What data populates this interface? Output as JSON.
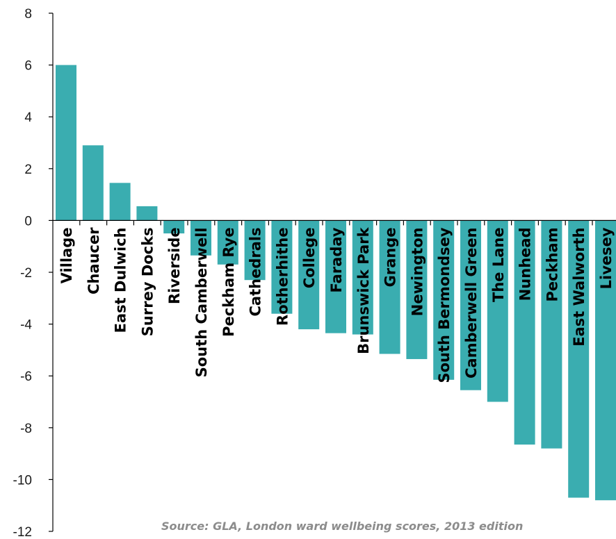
{
  "chart_data": {
    "type": "bar",
    "categories": [
      "Village",
      "Chaucer",
      "East Dulwich",
      "Surrey Docks",
      "Riverside",
      "South Camberwell",
      "Peckham Rye",
      "Cathedrals",
      "Rotherhithe",
      "College",
      "Faraday",
      "Brunswick Park",
      "Grange",
      "Newington",
      "South Bermondsey",
      "Camberwell Green",
      "The Lane",
      "Nunhead",
      "Peckham",
      "East Walworth",
      "Livesey"
    ],
    "values": [
      6.0,
      2.9,
      1.45,
      0.55,
      -0.5,
      -1.35,
      -1.7,
      -2.3,
      -3.6,
      -4.2,
      -4.35,
      -4.4,
      -5.15,
      -5.35,
      -6.15,
      -6.55,
      -7.0,
      -8.65,
      -8.8,
      -10.7,
      -10.8
    ],
    "yticks": [
      8,
      6,
      4,
      2,
      0,
      -2,
      -4,
      -6,
      -8,
      -10,
      -12
    ],
    "ylim": [
      -12,
      8
    ],
    "bar_color": "#3aadb0",
    "annotation": "Source: GLA, London ward wellbeing scores, 2013 edition"
  }
}
